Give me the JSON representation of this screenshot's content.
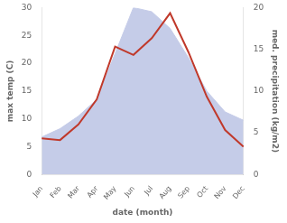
{
  "chart_data": {
    "type": "line",
    "x_label": "date (month)",
    "y_label": "max temp (C)",
    "y2_label": "med. precipitation (kg/m2)",
    "categories": [
      "Jan",
      "Feb",
      "Mar",
      "Apr",
      "May",
      "Jun",
      "Jul",
      "Aug",
      "Sep",
      "Oct",
      "Nov",
      "Dec"
    ],
    "series": [
      {
        "type": "area",
        "axis": "y2",
        "color": "#c5cce8",
        "values": [
          4.5,
          5.5,
          7.0,
          9.0,
          14.5,
          20.0,
          19.5,
          17.5,
          14.0,
          10.0,
          7.5,
          6.5
        ]
      },
      {
        "type": "line",
        "color": "#c0392b",
        "values": [
          6.5,
          6.2,
          9.0,
          13.5,
          23.0,
          21.5,
          24.5,
          29.0,
          22.0,
          14.0,
          8.0,
          5.0
        ]
      }
    ],
    "ylim": [
      0,
      30
    ],
    "yticks": [
      0,
      5,
      10,
      15,
      20,
      25,
      30
    ],
    "y2lim": [
      0,
      20
    ],
    "y2ticks": [
      0,
      5,
      10,
      15,
      20
    ],
    "grid": false
  }
}
